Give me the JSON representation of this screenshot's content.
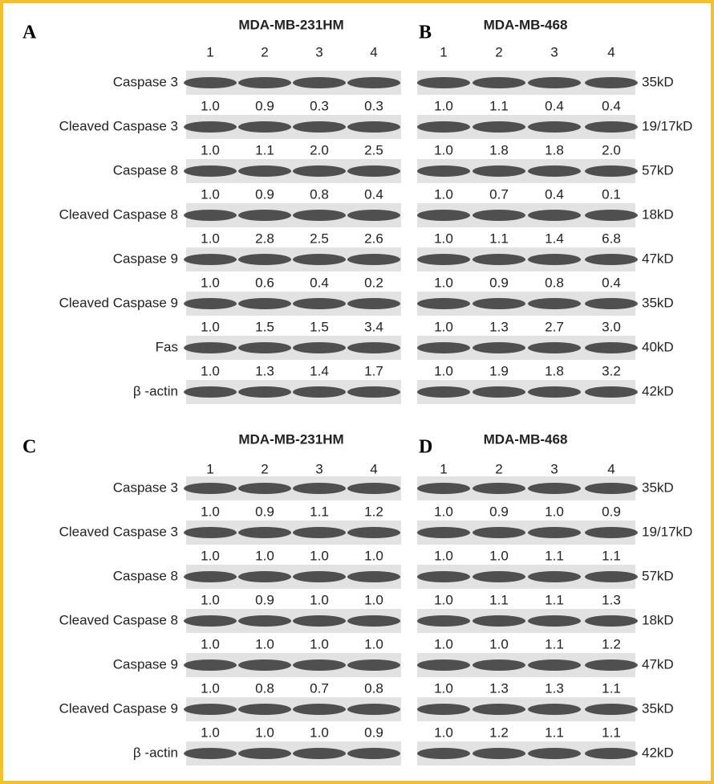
{
  "panels": [
    {
      "letter": "A",
      "title": "MDA-MB-231HM",
      "lanes": [
        "1",
        "2",
        "3",
        "4"
      ],
      "rows": [
        {
          "label": "Caspase 3",
          "values": [
            "1.0",
            "0.9",
            "0.3",
            "0.3"
          ]
        },
        {
          "label": "Cleaved Caspase 3",
          "values": [
            "1.0",
            "1.1",
            "2.0",
            "2.5"
          ]
        },
        {
          "label": "Caspase 8",
          "values": [
            "1.0",
            "0.9",
            "0.8",
            "0.4"
          ]
        },
        {
          "label": "Cleaved Caspase 8",
          "values": [
            "1.0",
            "2.8",
            "2.5",
            "2.6"
          ]
        },
        {
          "label": "Caspase 9",
          "values": [
            "1.0",
            "0.6",
            "0.4",
            "0.2"
          ]
        },
        {
          "label": "Cleaved Caspase 9",
          "values": [
            "1.0",
            "1.5",
            "1.5",
            "3.4"
          ]
        },
        {
          "label": "Fas",
          "values": [
            "1.0",
            "1.3",
            "1.4",
            "1.7"
          ]
        },
        {
          "label": "β -actin"
        }
      ]
    },
    {
      "letter": "B",
      "title": "MDA-MB-468",
      "lanes": [
        "1",
        "2",
        "3",
        "4"
      ],
      "rows": [
        {
          "size": "35kD",
          "values": [
            "1.0",
            "1.1",
            "0.4",
            "0.4"
          ]
        },
        {
          "size": "19/17kD",
          "values": [
            "1.0",
            "1.8",
            "1.8",
            "2.0"
          ]
        },
        {
          "size": "57kD",
          "values": [
            "1.0",
            "0.7",
            "0.4",
            "0.1"
          ]
        },
        {
          "size": "18kD",
          "values": [
            "1.0",
            "1.1",
            "1.4",
            "6.8"
          ]
        },
        {
          "size": "47kD",
          "values": [
            "1.0",
            "0.9",
            "0.8",
            "0.4"
          ]
        },
        {
          "size": "35kD",
          "values": [
            "1.0",
            "1.3",
            "2.7",
            "3.0"
          ]
        },
        {
          "size": "40kD",
          "values": [
            "1.0",
            "1.9",
            "1.8",
            "3.2"
          ]
        },
        {
          "size": "42kD"
        }
      ]
    },
    {
      "letter": "C",
      "title": "MDA-MB-231HM",
      "lanes": [
        "1",
        "2",
        "3",
        "4"
      ],
      "rows": [
        {
          "label": "Caspase 3",
          "values": [
            "1.0",
            "0.9",
            "1.1",
            "1.2"
          ]
        },
        {
          "label": "Cleaved Caspase 3",
          "values": [
            "1.0",
            "1.0",
            "1.0",
            "1.0"
          ]
        },
        {
          "label": "Caspase 8",
          "values": [
            "1.0",
            "0.9",
            "1.0",
            "1.0"
          ]
        },
        {
          "label": "Cleaved Caspase 8",
          "values": [
            "1.0",
            "1.0",
            "1.0",
            "1.0"
          ]
        },
        {
          "label": "Caspase 9",
          "values": [
            "1.0",
            "0.8",
            "0.7",
            "0.8"
          ]
        },
        {
          "label": "Cleaved Caspase 9",
          "values": [
            "1.0",
            "1.0",
            "1.0",
            "0.9"
          ]
        },
        {
          "label": "β -actin"
        }
      ]
    },
    {
      "letter": "D",
      "title": "MDA-MB-468",
      "lanes": [
        "1",
        "2",
        "3",
        "4"
      ],
      "rows": [
        {
          "size": "35kD",
          "values": [
            "1.0",
            "0.9",
            "1.0",
            "0.9"
          ]
        },
        {
          "size": "19/17kD",
          "values": [
            "1.0",
            "1.0",
            "1.1",
            "1.1"
          ]
        },
        {
          "size": "57kD",
          "values": [
            "1.0",
            "1.1",
            "1.1",
            "1.3"
          ]
        },
        {
          "size": "18kD",
          "values": [
            "1.0",
            "1.0",
            "1.1",
            "1.2"
          ]
        },
        {
          "size": "47kD",
          "values": [
            "1.0",
            "1.3",
            "1.3",
            "1.1"
          ]
        },
        {
          "size": "35kD",
          "values": [
            "1.0",
            "1.2",
            "1.1",
            "1.1"
          ]
        },
        {
          "size": "42kD"
        }
      ]
    }
  ]
}
